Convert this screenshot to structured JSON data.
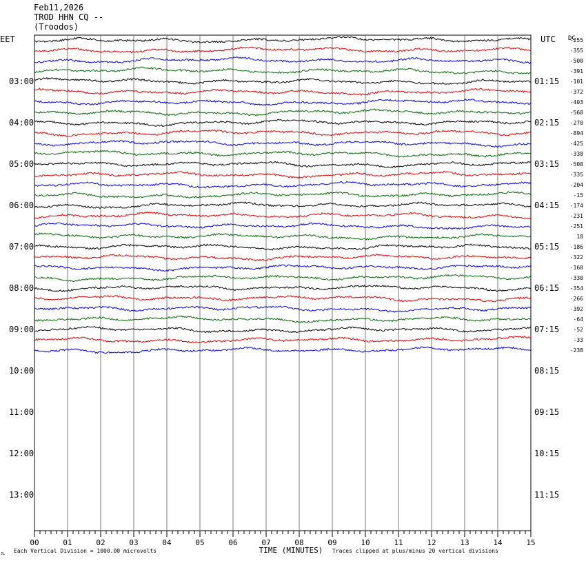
{
  "header": {
    "date": "Feb11,2026",
    "station": "TROD HHN CQ --",
    "location": "(Troodos)"
  },
  "chart_data": {
    "type": "line",
    "title": "Feb11,2026",
    "left_timezone": "EET",
    "right_timezone": "UTC",
    "dc_label": "DC",
    "xlabel": "TIME (MINUTES)",
    "x_ticks": [
      "00",
      "01",
      "02",
      "03",
      "04",
      "05",
      "06",
      "07",
      "08",
      "09",
      "10",
      "11",
      "12",
      "13",
      "14",
      "15"
    ],
    "xlim": [
      0,
      15
    ],
    "left_hour_labels": [
      "03:00",
      "04:00",
      "05:00",
      "06:00",
      "07:00",
      "08:00",
      "09:00",
      "10:00",
      "11:00",
      "12:00",
      "13:00"
    ],
    "right_hour_labels": [
      "01:15",
      "02:15",
      "03:15",
      "04:15",
      "05:15",
      "06:15",
      "07:15",
      "08:15",
      "09:15",
      "10:15",
      "11:15"
    ],
    "dc_offsets": [
      "-255",
      "-355",
      "-500",
      "-391",
      "-101",
      "-372",
      "-403",
      "-568",
      "-270",
      "-894",
      "-425",
      "-338",
      "-508",
      "-335",
      "-204",
      "-15",
      "-174",
      "-231",
      "-251",
      "18",
      "-186",
      "-322",
      "-160",
      "-330",
      "-354",
      "-266",
      "-392",
      "-64",
      "-52",
      "-33",
      "-238"
    ],
    "trace_colors": [
      "#000000",
      "#dd0000",
      "#0000dd",
      "#006600"
    ],
    "trace_count": 31,
    "footer_left": "Each Vertical Division = 1000.00 microvolts",
    "footer_right": "Traces clipped at plus/minus 20 vertical divisions",
    "footer_mark": "JL"
  }
}
